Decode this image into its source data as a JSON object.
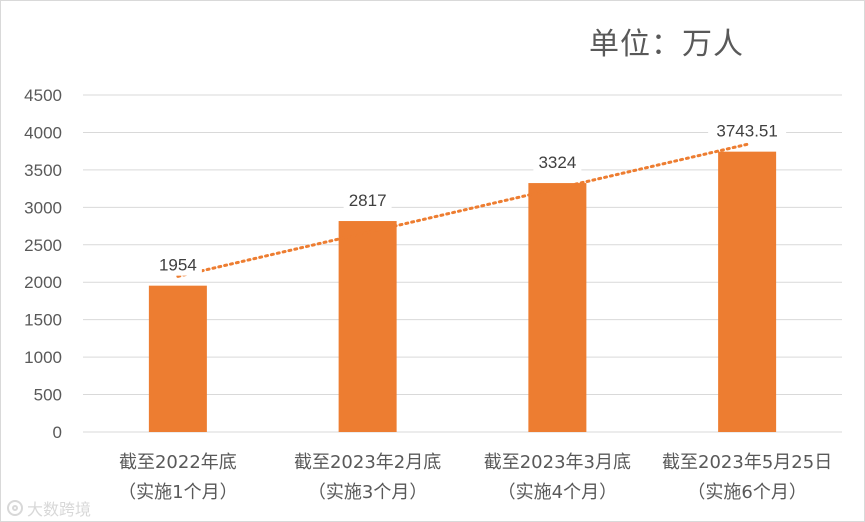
{
  "unit_label": "单位：万人",
  "watermark": "大数跨境",
  "chart_data": {
    "type": "bar",
    "categories": [
      {
        "line1": "截至2022年底",
        "line2": "（实施1个月）"
      },
      {
        "line1": "截至2023年2月底",
        "line2": "（实施3个月）"
      },
      {
        "line1": "截至2023年3月底",
        "line2": "（实施4个月）"
      },
      {
        "line1": "截至2023年5月25日",
        "line2": "（实施6个月）"
      }
    ],
    "values": [
      1954,
      2817,
      3324,
      3743.51
    ],
    "value_labels": [
      "1954",
      "2817",
      "3324",
      "3743.51"
    ],
    "ylim": [
      0,
      4500
    ],
    "yticks": [
      0,
      500,
      1000,
      1500,
      2000,
      2500,
      3000,
      3500,
      4000,
      4500
    ],
    "grid": true,
    "trendline": {
      "type": "linear",
      "style": "dotted"
    },
    "colors": {
      "bar": "#ED7D31",
      "trend": "#ED7D31",
      "grid": "#D9D9D9",
      "text": "#595959",
      "label": "#404040"
    }
  }
}
